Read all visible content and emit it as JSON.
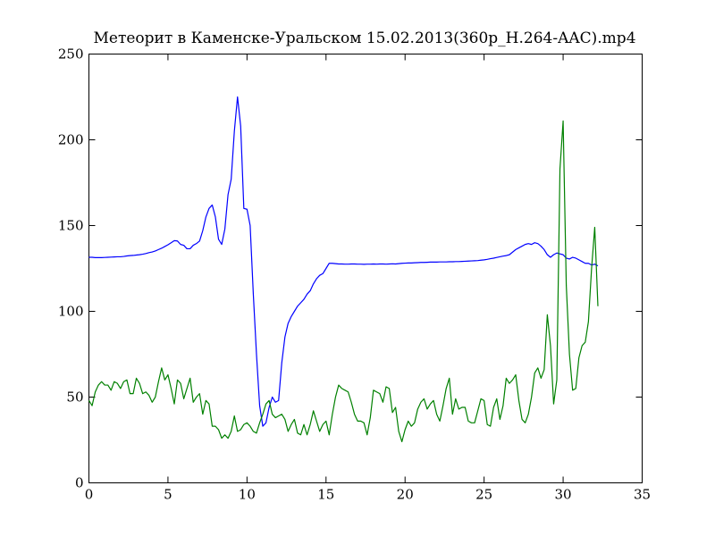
{
  "chart_data": {
    "type": "line",
    "title": "Метеорит в Каменске-Уральском 15.02.2013(360p_H.264-AAC).mp4",
    "x": [
      0,
      0.2,
      0.4,
      0.6,
      0.8,
      1,
      1.2,
      1.4,
      1.6,
      1.8,
      2,
      2.2,
      2.4,
      2.6,
      2.8,
      3,
      3.2,
      3.4,
      3.6,
      3.8,
      4,
      4.2,
      4.4,
      4.6,
      4.8,
      5,
      5.2,
      5.4,
      5.6,
      5.8,
      6,
      6.2,
      6.4,
      6.6,
      6.8,
      7,
      7.2,
      7.4,
      7.6,
      7.8,
      8,
      8.2,
      8.4,
      8.6,
      8.8,
      9,
      9.2,
      9.4,
      9.6,
      9.8,
      10,
      10.2,
      10.4,
      10.6,
      10.8,
      11,
      11.2,
      11.4,
      11.6,
      11.8,
      12,
      12.2,
      12.4,
      12.6,
      12.8,
      13,
      13.2,
      13.4,
      13.6,
      13.8,
      14,
      14.2,
      14.4,
      14.6,
      14.8,
      15,
      15.2,
      15.4,
      15.6,
      15.8,
      16,
      16.2,
      16.4,
      16.6,
      16.8,
      17,
      17.2,
      17.4,
      17.6,
      17.8,
      18,
      18.2,
      18.4,
      18.6,
      18.8,
      19,
      19.2,
      19.4,
      19.6,
      19.8,
      20,
      20.2,
      20.4,
      20.6,
      20.8,
      21,
      21.2,
      21.4,
      21.6,
      21.8,
      22,
      22.2,
      22.4,
      22.6,
      22.8,
      23,
      23.2,
      23.4,
      23.6,
      23.8,
      24,
      24.2,
      24.4,
      24.6,
      24.8,
      25,
      25.2,
      25.4,
      25.6,
      25.8,
      26,
      26.2,
      26.4,
      26.6,
      26.8,
      27,
      27.2,
      27.4,
      27.6,
      27.8,
      28,
      28.2,
      28.4,
      28.6,
      28.8,
      29,
      29.2,
      29.4,
      29.6,
      29.8,
      30,
      30.2,
      30.4,
      30.6,
      30.8,
      31,
      31.2,
      31.4,
      31.6,
      31.8,
      32,
      32.2
    ],
    "series": [
      {
        "color": "#0000ff",
        "values": [
          131.5,
          131.5,
          131.3,
          131.3,
          131.3,
          131.4,
          131.5,
          131.6,
          131.7,
          131.8,
          131.8,
          132,
          132.3,
          132.5,
          132.6,
          132.8,
          133,
          133.3,
          133.7,
          134.2,
          134.6,
          135.2,
          136,
          136.8,
          137.8,
          138.8,
          140,
          141.2,
          141,
          139,
          138.5,
          136.5,
          136.5,
          138.5,
          139.5,
          141,
          147,
          155,
          160,
          162,
          155,
          142,
          139,
          148,
          168,
          177,
          205,
          225,
          208,
          160,
          159.5,
          150,
          110,
          75,
          45,
          33,
          35,
          44,
          50,
          47,
          48,
          70,
          85,
          93,
          97,
          100,
          103,
          105,
          107,
          110,
          112,
          116,
          119,
          121,
          122,
          125,
          128,
          128,
          127.8,
          127.6,
          127.6,
          127.5,
          127.5,
          127.6,
          127.6,
          127.5,
          127.5,
          127.4,
          127.5,
          127.5,
          127.6,
          127.5,
          127.6,
          127.6,
          127.5,
          127.6,
          127.7,
          127.6,
          127.8,
          128,
          128.1,
          128.2,
          128.2,
          128.3,
          128.4,
          128.5,
          128.5,
          128.6,
          128.7,
          128.7,
          128.7,
          128.8,
          128.8,
          128.8,
          128.9,
          128.9,
          129,
          129,
          129.1,
          129.2,
          129.3,
          129.4,
          129.5,
          129.6,
          129.8,
          130,
          130.3,
          130.7,
          131,
          131.4,
          131.8,
          132.2,
          132.5,
          133,
          134.5,
          136,
          137,
          138,
          139,
          139.5,
          139,
          140,
          139.5,
          138,
          136,
          133,
          131.5,
          133,
          134,
          133.5,
          133,
          131,
          130.5,
          131.5,
          131,
          130,
          129,
          128,
          128,
          127,
          127.5,
          126.5
        ]
      },
      {
        "color": "#008000",
        "values": [
          48,
          45,
          53,
          57,
          59,
          57,
          57,
          54,
          59,
          58,
          55,
          59,
          60,
          52,
          52,
          61,
          58,
          52,
          53,
          51,
          47,
          50,
          59,
          67,
          60,
          63,
          55,
          46,
          60,
          58,
          49,
          55,
          61,
          47,
          50,
          52,
          40,
          48,
          46,
          33,
          33,
          31,
          26,
          28,
          26,
          30,
          39,
          30,
          31,
          34,
          35,
          33,
          30,
          29,
          35,
          40,
          46,
          48,
          40,
          38,
          39,
          40,
          37,
          30,
          34,
          37,
          29,
          28,
          34,
          28,
          34,
          42,
          36,
          30,
          34,
          36,
          28,
          40,
          50,
          57,
          55,
          54,
          53,
          47,
          40,
          36,
          36,
          35,
          28,
          38,
          54,
          53,
          52,
          47,
          56,
          55,
          41,
          44,
          30,
          24,
          31,
          36,
          33,
          35,
          43,
          47,
          49,
          43,
          46,
          48,
          40,
          36,
          45,
          55,
          61,
          40,
          49,
          43,
          44,
          44,
          36,
          35,
          35,
          42,
          49,
          48,
          34,
          33,
          44,
          49,
          37,
          45,
          61,
          58,
          60,
          63,
          48,
          37,
          35,
          40,
          50,
          64,
          67,
          61,
          66,
          98,
          80,
          46,
          60,
          183,
          211,
          115,
          75,
          54,
          55,
          73,
          80,
          82,
          94,
          125,
          149,
          103
        ]
      }
    ],
    "xlim": [
      0,
      35
    ],
    "xticks": [
      0,
      5,
      10,
      15,
      20,
      25,
      30,
      35
    ],
    "ylim": [
      0,
      250
    ],
    "yticks": [
      0,
      50,
      100,
      150,
      200,
      250
    ],
    "grid": false
  }
}
